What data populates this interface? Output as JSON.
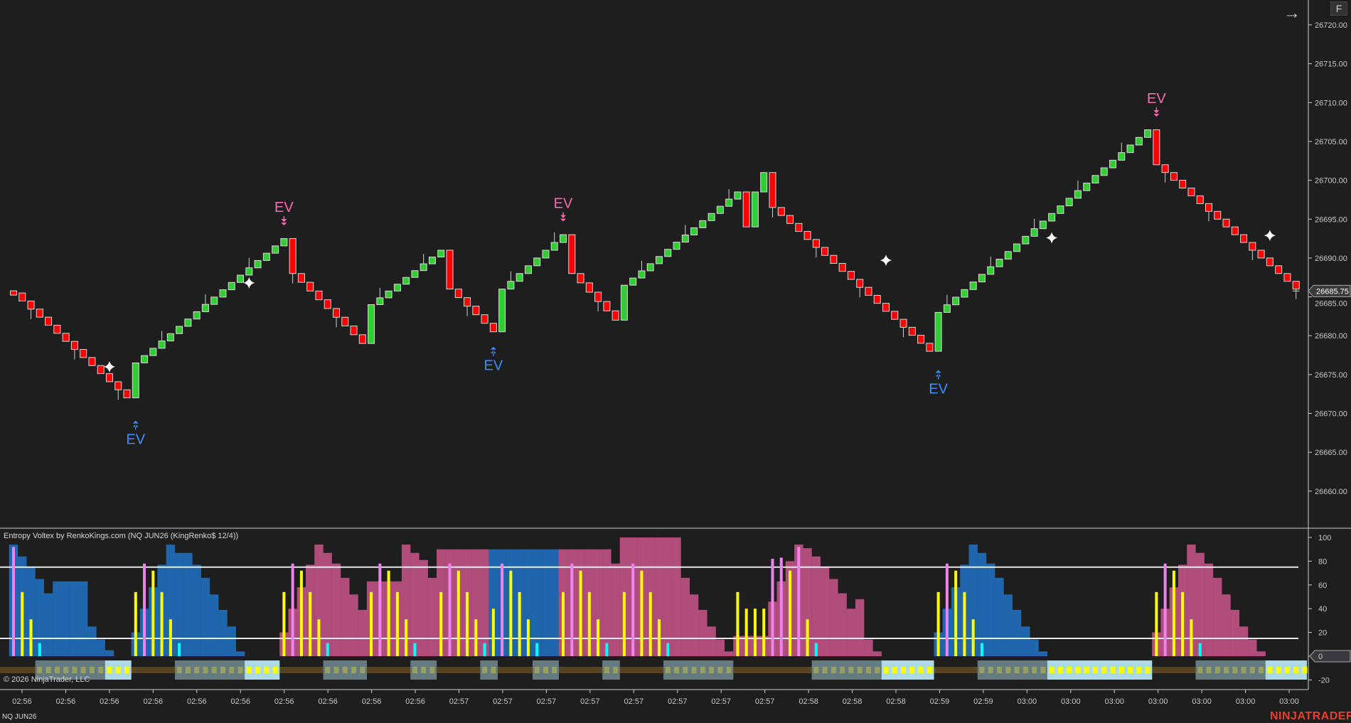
{
  "indicator_title": "Entropy Voltex by RenkoKings.com (NQ JUN26 (KingRenko$ 12/4))",
  "copyright": "© 2026 NinjaTrader, LLC",
  "instrument": "NQ JUN26",
  "logo": "NINJATRADER",
  "toolbar": {
    "f_button": "F",
    "scroll_arrow_icon": "arrow-right-icon"
  },
  "colors": {
    "background": "#1e1e1e",
    "up": "#32cd32",
    "down": "#ff0000",
    "bear_hist": "#b04d7a",
    "bull_hist": "#1f66ad",
    "yellow": "#ffff00",
    "violet": "#ee82ee",
    "cyan": "#00ffff",
    "ev_sell": "#ff69b4",
    "ev_buy": "#3d8eff"
  },
  "chart_data": [
    {
      "type": "candlestick",
      "ylim": [
        26655,
        26723
      ],
      "y_ticks": [
        "26720.00",
        "26715.00",
        "26710.00",
        "26705.00",
        "26700.00",
        "26695.00",
        "26690.00",
        "26685.00",
        "26680.00",
        "26675.00",
        "26670.00",
        "26665.00",
        "26660.00"
      ],
      "last_price": "26685.75",
      "pivots_bar_price": [
        [
          0,
          26685.5
        ],
        [
          13,
          26672
        ],
        [
          14,
          26676.5
        ],
        [
          31,
          26692.5
        ],
        [
          32,
          26688
        ],
        [
          40,
          26679
        ],
        [
          41,
          26684
        ],
        [
          49,
          26691
        ],
        [
          50,
          26686
        ],
        [
          55,
          26680.5
        ],
        [
          56,
          26686
        ],
        [
          63,
          26693
        ],
        [
          64,
          26688
        ],
        [
          69,
          26682
        ],
        [
          70,
          26686.5
        ],
        [
          83,
          26698.5
        ],
        [
          84,
          26694
        ],
        [
          85,
          26698.5
        ],
        [
          86,
          26701
        ],
        [
          87,
          26696.5
        ],
        [
          105,
          26678
        ],
        [
          106,
          26683
        ],
        [
          130,
          26706.5
        ],
        [
          131,
          26702
        ],
        [
          147,
          26686
        ]
      ],
      "signals": [
        {
          "label": "EV",
          "side": "sell",
          "bar": 31,
          "price": 26693
        },
        {
          "label": "EV",
          "side": "sell",
          "bar": 63,
          "price": 26693.5
        },
        {
          "label": "EV",
          "side": "sell",
          "bar": 131,
          "price": 26707
        },
        {
          "label": "EV",
          "side": "buy",
          "bar": 14,
          "price": 26671
        },
        {
          "label": "EV",
          "side": "buy",
          "bar": 55,
          "price": 26680.5
        },
        {
          "label": "EV",
          "side": "buy",
          "bar": 106,
          "price": 26677.5
        }
      ],
      "stars_bar_price": [
        [
          11,
          26676
        ],
        [
          27,
          26686.8
        ],
        [
          100,
          26689.7
        ],
        [
          119,
          26692.6
        ],
        [
          144,
          26692.9
        ]
      ]
    },
    {
      "type": "histogram",
      "ylim": [
        -28,
        104
      ],
      "y_ticks": [
        "100",
        "80",
        "60",
        "40",
        "20",
        "0",
        "-20"
      ],
      "levels": [
        75,
        15
      ],
      "blocks": [
        {
          "color": "bull",
          "start": 0,
          "values": [
            94,
            84,
            75,
            65,
            53,
            63,
            63,
            63,
            63,
            25,
            14,
            5
          ]
        },
        {
          "color": "bull",
          "start": 14,
          "values": [
            20,
            40,
            58,
            77,
            94,
            87,
            87,
            77,
            66,
            52,
            39,
            25,
            4
          ]
        },
        {
          "color": "bear",
          "start": 31,
          "values": [
            20,
            40,
            58,
            77,
            94,
            87,
            78,
            66,
            52,
            39,
            63,
            63,
            63,
            63,
            94,
            87,
            81,
            66,
            90,
            90,
            90,
            90,
            90,
            90
          ]
        },
        {
          "color": "bull",
          "start": 55,
          "values": [
            90,
            90,
            90,
            90,
            90,
            90,
            90,
            90
          ]
        },
        {
          "color": "bear",
          "start": 63,
          "values": [
            90,
            90,
            90,
            90,
            90,
            90,
            78,
            100,
            100,
            100,
            100,
            100,
            100,
            100,
            66,
            52,
            39,
            25,
            14,
            4,
            17,
            17,
            17,
            17,
            46,
            63,
            80,
            94,
            91,
            84,
            75,
            65,
            53,
            40,
            48,
            14,
            4
          ]
        },
        {
          "color": "bull",
          "start": 106,
          "values": [
            20,
            40,
            58,
            77,
            94,
            87,
            78,
            66,
            52,
            39,
            25,
            14,
            4
          ]
        },
        {
          "color": "bear",
          "start": 131,
          "values": [
            20,
            40,
            58,
            77,
            94,
            87,
            78,
            66,
            52,
            39,
            25,
            14,
            4
          ]
        }
      ],
      "spikes_bar_value_color": [
        [
          0,
          92,
          "v"
        ],
        [
          1,
          54,
          "y"
        ],
        [
          2,
          31,
          "y"
        ],
        [
          3,
          11,
          "c"
        ],
        [
          14,
          54,
          "y"
        ],
        [
          15,
          78,
          "v"
        ],
        [
          16,
          72,
          "y"
        ],
        [
          17,
          54,
          "y"
        ],
        [
          18,
          31,
          "y"
        ],
        [
          19,
          11,
          "c"
        ],
        [
          31,
          54,
          "y"
        ],
        [
          32,
          78,
          "v"
        ],
        [
          33,
          72,
          "y"
        ],
        [
          34,
          54,
          "y"
        ],
        [
          35,
          31,
          "y"
        ],
        [
          36,
          11,
          "c"
        ],
        [
          41,
          54,
          "y"
        ],
        [
          42,
          78,
          "v"
        ],
        [
          43,
          72,
          "y"
        ],
        [
          44,
          54,
          "y"
        ],
        [
          45,
          31,
          "y"
        ],
        [
          46,
          11,
          "c"
        ],
        [
          49,
          54,
          "y"
        ],
        [
          50,
          78,
          "v"
        ],
        [
          51,
          72,
          "y"
        ],
        [
          52,
          54,
          "y"
        ],
        [
          53,
          31,
          "y"
        ],
        [
          54,
          11,
          "c"
        ],
        [
          55,
          40,
          "y"
        ],
        [
          56,
          78,
          "v"
        ],
        [
          57,
          72,
          "y"
        ],
        [
          58,
          54,
          "y"
        ],
        [
          59,
          31,
          "y"
        ],
        [
          60,
          11,
          "c"
        ],
        [
          63,
          54,
          "y"
        ],
        [
          64,
          78,
          "v"
        ],
        [
          65,
          72,
          "y"
        ],
        [
          66,
          54,
          "y"
        ],
        [
          67,
          31,
          "y"
        ],
        [
          68,
          11,
          "c"
        ],
        [
          70,
          54,
          "y"
        ],
        [
          71,
          78,
          "v"
        ],
        [
          72,
          72,
          "y"
        ],
        [
          73,
          54,
          "y"
        ],
        [
          74,
          31,
          "y"
        ],
        [
          75,
          11,
          "c"
        ],
        [
          83,
          54,
          "y"
        ],
        [
          84,
          40,
          "y"
        ],
        [
          85,
          40,
          "y"
        ],
        [
          86,
          40,
          "y"
        ],
        [
          87,
          82,
          "v"
        ],
        [
          88,
          83,
          "v"
        ],
        [
          89,
          72,
          "y"
        ],
        [
          90,
          92,
          "v"
        ],
        [
          91,
          31,
          "y"
        ],
        [
          92,
          11,
          "c"
        ],
        [
          106,
          54,
          "y"
        ],
        [
          107,
          78,
          "v"
        ],
        [
          108,
          72,
          "y"
        ],
        [
          109,
          54,
          "y"
        ],
        [
          110,
          31,
          "y"
        ],
        [
          111,
          11,
          "c"
        ],
        [
          131,
          54,
          "y"
        ],
        [
          132,
          78,
          "v"
        ],
        [
          133,
          72,
          "y"
        ],
        [
          134,
          54,
          "y"
        ],
        [
          135,
          31,
          "y"
        ],
        [
          136,
          11,
          "c"
        ]
      ],
      "state_strip": [
        [
          3,
          10,
          "pending"
        ],
        [
          11,
          13,
          "active"
        ],
        [
          19,
          26,
          "pending"
        ],
        [
          27,
          30,
          "active"
        ],
        [
          36,
          40,
          "pending"
        ],
        [
          46,
          48,
          "pending"
        ],
        [
          54,
          55,
          "pending"
        ],
        [
          60,
          62,
          "pending"
        ],
        [
          68,
          69,
          "pending"
        ],
        [
          75,
          82,
          "pending"
        ],
        [
          92,
          99,
          "pending"
        ],
        [
          100,
          105,
          "active"
        ],
        [
          111,
          118,
          "pending"
        ],
        [
          119,
          130,
          "active"
        ],
        [
          136,
          143,
          "pending"
        ],
        [
          144,
          148,
          "active"
        ]
      ]
    }
  ],
  "x_ticks": [
    "02:56",
    "02:56",
    "02:56",
    "02:56",
    "02:56",
    "02:56",
    "02:56",
    "02:56",
    "02:56",
    "02:56",
    "02:57",
    "02:57",
    "02:57",
    "02:57",
    "02:57",
    "02:57",
    "02:57",
    "02:57",
    "02:58",
    "02:58",
    "02:58",
    "02:59",
    "02:59",
    "03:00",
    "03:00",
    "03:00",
    "03:00",
    "03:00",
    "03:00",
    "03:00"
  ]
}
